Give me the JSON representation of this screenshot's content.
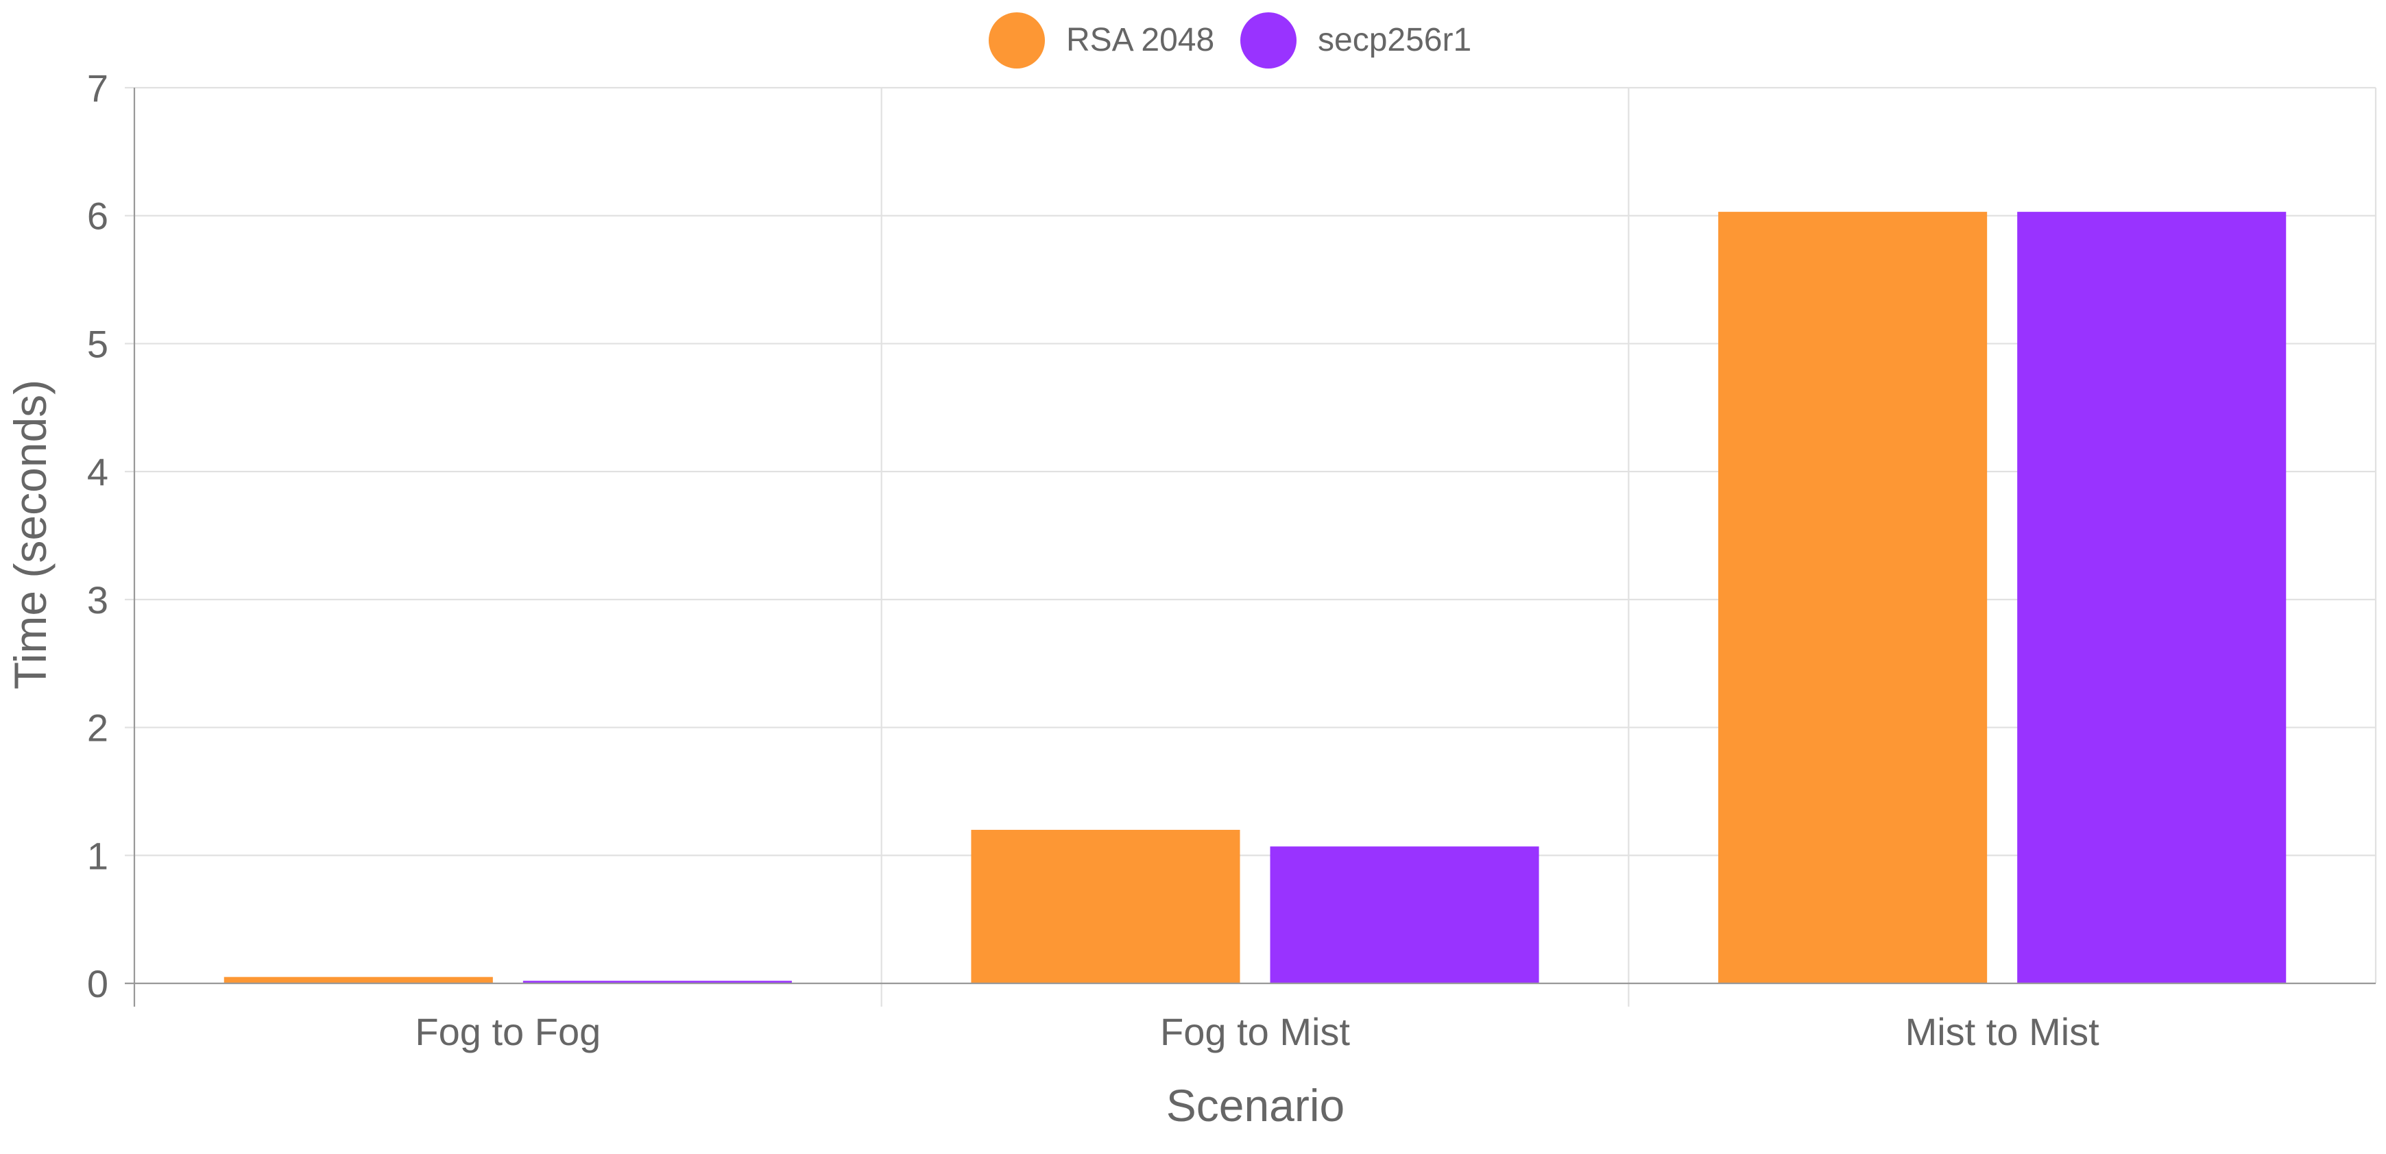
{
  "chart_data": {
    "type": "bar",
    "categories": [
      "Fog to Fog",
      "Fog to Mist",
      "Mist to Mist"
    ],
    "series": [
      {
        "name": "RSA 2048",
        "color": "#fd9734",
        "values": [
          0.05,
          1.2,
          6.03
        ]
      },
      {
        "name": "secp256r1",
        "color": "#9933ff",
        "values": [
          0.02,
          1.07,
          6.03
        ]
      }
    ],
    "xlabel": "Scenario",
    "ylabel": "Time (seconds)",
    "ylim": [
      0,
      7
    ],
    "yticks": [
      "0",
      "1",
      "2",
      "3",
      "4",
      "5",
      "6",
      "7"
    ],
    "grid": true,
    "legend_position": "top-center"
  }
}
